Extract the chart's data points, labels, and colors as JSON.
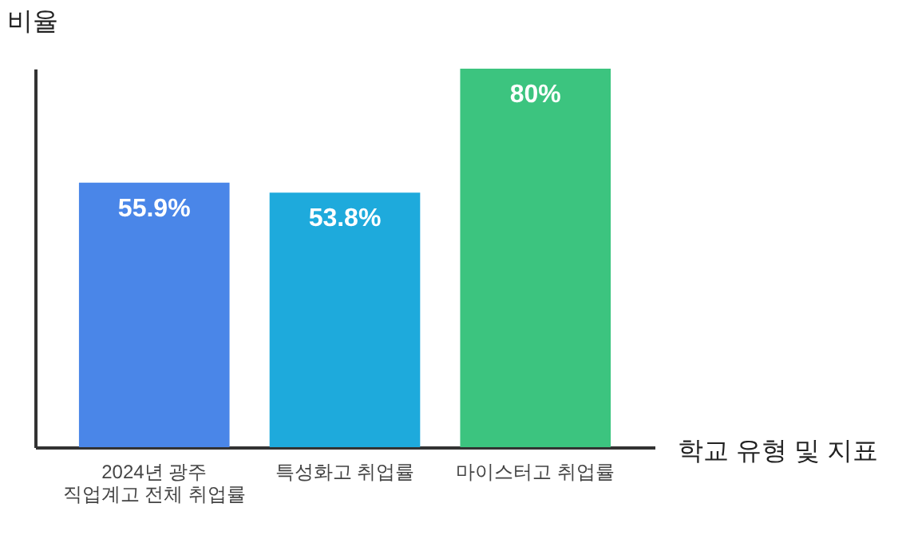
{
  "chart_data": {
    "type": "bar",
    "xlabel": "학교 유형 및 지표",
    "ylabel": "비율",
    "categories": [
      "2024년 광주 직업계고 전체 취업률",
      "특성화고 취업률",
      "마이스터고 취업률"
    ],
    "values": [
      55.9,
      53.8,
      80
    ],
    "colors": [
      "#4a86e8",
      "#1eaadc",
      "#3cc47f"
    ],
    "value_labels": [
      "55.9%",
      "53.8%",
      "80%"
    ],
    "tick_labels": "x"
  }
}
